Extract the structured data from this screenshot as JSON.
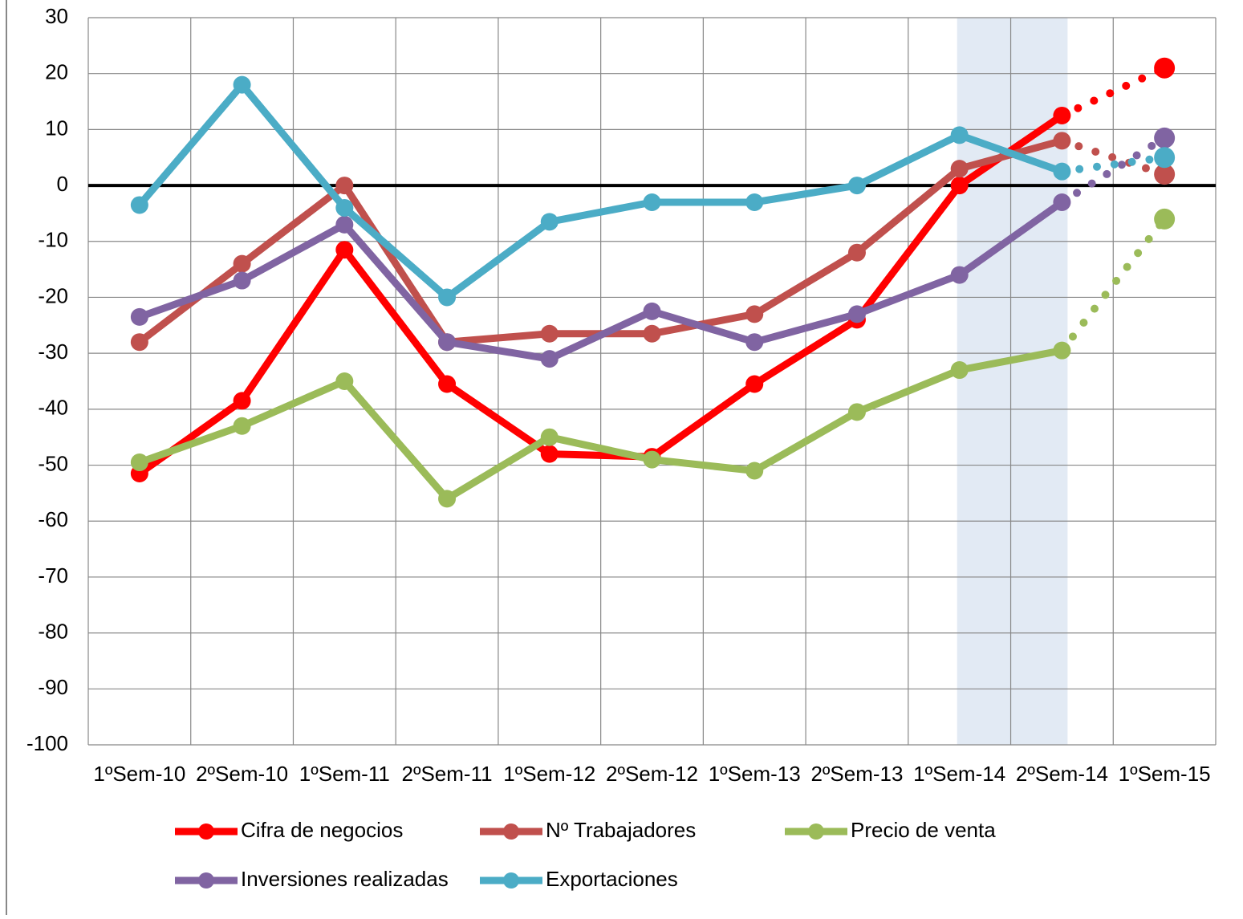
{
  "chart_data": {
    "type": "line",
    "categories": [
      "1ºSem-10",
      "2ºSem-10",
      "1ºSem-11",
      "2ºSem-11",
      "1ºSem-12",
      "2ºSem-12",
      "1ºSem-13",
      "2ºSem-13",
      "1ºSem-14",
      "2ºSem-14",
      "1ºSem-15"
    ],
    "series": [
      {
        "name": "Cifra de negocios",
        "color": "#ff0000",
        "values": [
          -51.5,
          -38.5,
          -11.5,
          -35.5,
          -48,
          -48.5,
          -35.5,
          -24,
          0,
          12.5,
          21
        ]
      },
      {
        "name": "Nº Trabajadores",
        "color": "#c0504d",
        "values": [
          -28,
          -14,
          0,
          -28,
          -26.5,
          -26.5,
          -23,
          -12,
          3,
          8,
          2
        ]
      },
      {
        "name": "Precio de venta",
        "color": "#9bbb59",
        "values": [
          -49.5,
          -43,
          -35,
          -56,
          -45,
          -49,
          -51,
          -40.5,
          -33,
          -29.5,
          -6
        ]
      },
      {
        "name": "Inversiones realizadas",
        "color": "#8064a2",
        "values": [
          -23.5,
          -17,
          -7,
          -28,
          -31,
          -22.5,
          -28,
          -23,
          -16,
          -3,
          8.5
        ]
      },
      {
        "name": "Exportaciones",
        "color": "#4bacc6",
        "values": [
          -3.5,
          18,
          -4,
          -20,
          -6.5,
          -3,
          -3,
          0,
          9,
          2.5,
          5
        ]
      }
    ],
    "ylim": [
      -100,
      30
    ],
    "yticks": [
      -100,
      -90,
      -80,
      -70,
      -60,
      -50,
      -40,
      -30,
      -20,
      -10,
      0,
      10,
      20,
      30
    ],
    "grid": true,
    "legend": "bottom",
    "forecast_from_index": 9
  }
}
